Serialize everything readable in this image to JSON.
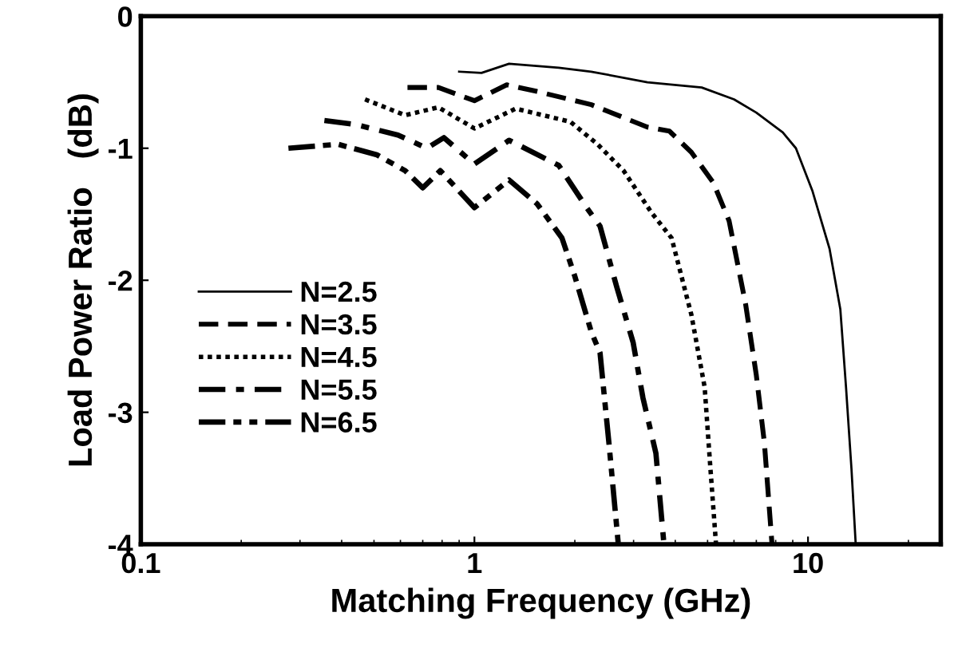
{
  "chart_data": {
    "type": "line",
    "xlabel": "Matching Frequency (GHz)",
    "ylabel": "Load Power Ratio   (dB)",
    "log": "x",
    "xlim": [
      0.1,
      25
    ],
    "xticks": [
      0.1,
      1,
      10
    ],
    "ylim": [
      -4,
      0
    ],
    "yticks": [
      -4,
      -3,
      -2,
      -1,
      0
    ],
    "grid": false,
    "legend": "left",
    "marker": "none",
    "series": [
      {
        "name": "N=2.5",
        "color": "#000000",
        "line_style": "solid",
        "x": [
          0.9,
          1.05,
          1.27,
          1.79,
          2.24,
          3.3,
          4.8,
          6.0,
          7.0,
          8.4,
          9.2,
          10.3,
          11.6,
          12.5,
          13.0,
          13.5,
          13.9
        ],
        "values": [
          -0.42,
          -0.43,
          -0.36,
          -0.39,
          -0.42,
          -0.5,
          -0.54,
          -0.63,
          -0.73,
          -0.88,
          -1.0,
          -1.32,
          -1.76,
          -2.22,
          -2.81,
          -3.43,
          -4.0
        ]
      },
      {
        "name": "N=3.5",
        "color": "#000000",
        "line_style": "dashed",
        "x": [
          0.63,
          0.78,
          1.0,
          1.25,
          1.54,
          2.24,
          3.3,
          3.84,
          4.47,
          5.2,
          5.8,
          6.5,
          7.0,
          7.4,
          7.8
        ],
        "values": [
          -0.54,
          -0.54,
          -0.64,
          -0.52,
          -0.57,
          -0.67,
          -0.84,
          -0.87,
          -1.03,
          -1.26,
          -1.55,
          -2.18,
          -2.72,
          -3.23,
          -4.0
        ]
      },
      {
        "name": "N=4.5",
        "color": "#000000",
        "line_style": "dotted",
        "x": [
          0.47,
          0.62,
          0.78,
          1.0,
          1.33,
          1.94,
          2.34,
          2.8,
          3.4,
          3.9,
          4.47,
          4.9,
          5.1,
          5.3
        ],
        "values": [
          -0.63,
          -0.75,
          -0.69,
          -0.85,
          -0.7,
          -0.8,
          -0.97,
          -1.17,
          -1.49,
          -1.68,
          -2.26,
          -2.81,
          -3.43,
          -4.0
        ]
      },
      {
        "name": "N=5.5",
        "color": "#000000",
        "line_style": "dashdot",
        "x": [
          0.355,
          0.44,
          0.59,
          0.72,
          0.81,
          1.0,
          1.27,
          1.79,
          2.17,
          2.38,
          2.67,
          2.99,
          3.2,
          3.5,
          3.7
        ],
        "values": [
          -0.79,
          -0.82,
          -0.9,
          -1.0,
          -0.92,
          -1.12,
          -0.94,
          -1.13,
          -1.45,
          -1.59,
          -2.05,
          -2.47,
          -2.89,
          -3.31,
          -4.0
        ]
      },
      {
        "name": "N=6.5",
        "color": "#000000",
        "line_style": "dashdotdot",
        "x": [
          0.277,
          0.39,
          0.51,
          0.62,
          0.7,
          0.79,
          1.0,
          1.27,
          1.54,
          1.83,
          2.0,
          2.24,
          2.38,
          2.53,
          2.7
        ],
        "values": [
          -1.0,
          -0.97,
          -1.05,
          -1.17,
          -1.3,
          -1.17,
          -1.45,
          -1.24,
          -1.42,
          -1.68,
          -1.97,
          -2.39,
          -2.55,
          -3.23,
          -4.0
        ]
      }
    ]
  }
}
